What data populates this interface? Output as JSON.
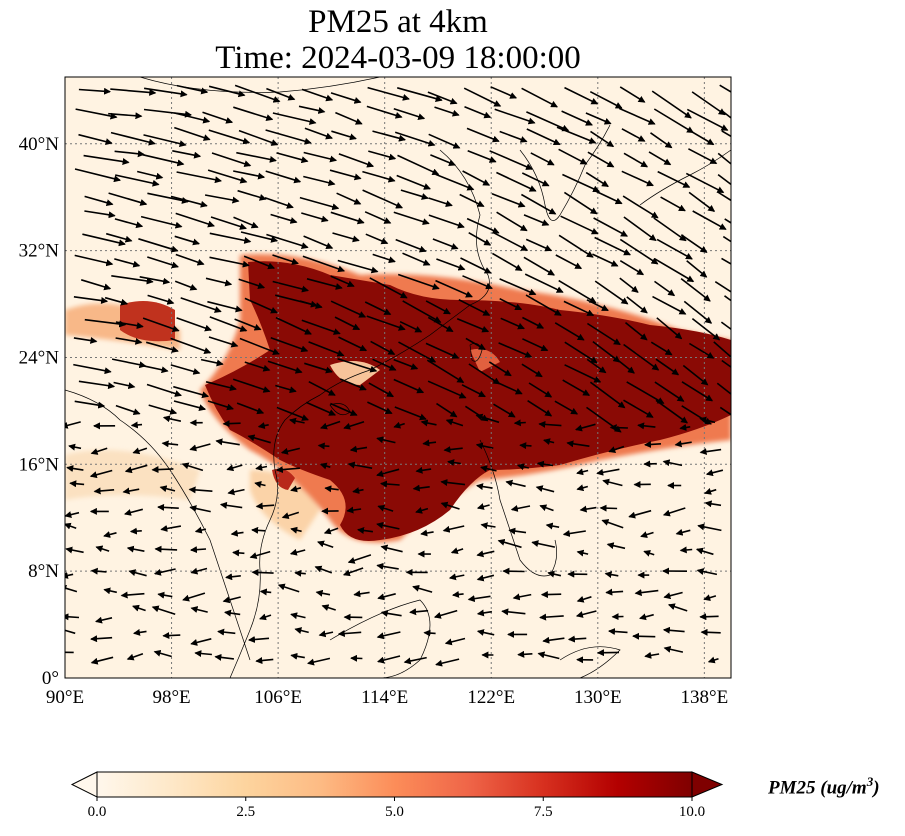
{
  "title": {
    "line1": "PM25 at 4km",
    "line2": "Time: 2024-03-09 18:00:00"
  },
  "map": {
    "projection": "PlateCarree",
    "lon_range": [
      90,
      140
    ],
    "lat_range": [
      0,
      45
    ],
    "x_ticks": [
      "90°E",
      "98°E",
      "106°E",
      "114°E",
      "122°E",
      "130°E",
      "138°E"
    ],
    "y_ticks": [
      "0°",
      "8°N",
      "16°N",
      "24°N",
      "32°N",
      "40°N"
    ],
    "gridlines": "dotted",
    "field": "PM25",
    "high_concentration_band": "from southern China (~102°E, 20–31°N) eastward across Taiwan to ~140°E, 17–26°N",
    "wind_vectors": "westerly/northwesterly north of ~20°N; weak easterly in the south"
  },
  "colorbar": {
    "colormap": "OrRd",
    "min": 0.0,
    "max": 10.0,
    "extend": "both",
    "ticks": [
      "0.0",
      "2.5",
      "5.0",
      "7.5",
      "10.0"
    ],
    "label_main": "PM25 (ug/m",
    "label_sup": "3",
    "label_close": ")",
    "colors": [
      "#fff7ec",
      "#fee8c8",
      "#fdd49e",
      "#fdbb84",
      "#fc8d59",
      "#ef6548",
      "#d7301f",
      "#b30000",
      "#7f0000"
    ]
  }
}
